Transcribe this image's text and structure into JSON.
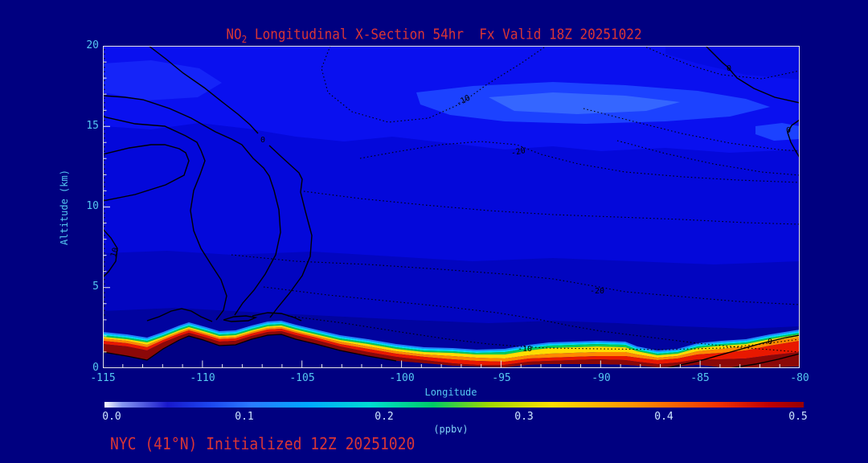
{
  "title": {
    "prefix": "NO",
    "sub": "2",
    "rest": " Longitudinal X-Section 54hr  Fx Valid 18Z 20251022"
  },
  "y_axis": {
    "label": "Altitude (km)",
    "ticks": [
      "20",
      "15",
      "10",
      "5",
      "0"
    ]
  },
  "x_axis": {
    "label": "Longitude",
    "ticks": [
      "-115",
      "-110",
      "-105",
      "-100",
      "-95",
      "-90",
      "-85",
      "-80"
    ]
  },
  "colorbar": {
    "units": "(ppbv)",
    "ticks": [
      "0.0",
      "0.1",
      "0.2",
      "0.3",
      "0.4",
      "0.5"
    ]
  },
  "footer": {
    "text": "NYC (41°N) Initialized 12Z 20251020"
  },
  "contour_labels": [
    "0",
    "10",
    "-10",
    "-20",
    "-20",
    "-10",
    "0",
    "0",
    "0"
  ],
  "colors": {
    "background": "#000080",
    "title_text": "#d93535",
    "axis_text": "#55c8f0",
    "colorbar_text": "#cfe8ff",
    "plume_dark_red": "#8b0808",
    "plume_yellow": "#ffdd00",
    "ambient_blue": "#0a10ef"
  },
  "chart_data": {
    "type": "heatmap",
    "title": "NO2 Longitudinal X-Section 54hr  Fx Valid 18Z 20251022",
    "subtitle": "NYC (41°N) Initialized 12Z 20251020",
    "xlabel": "Longitude",
    "ylabel": "Altitude (km)",
    "xlim": [
      -115,
      -80
    ],
    "ylim": [
      0,
      20
    ],
    "x_ticks": [
      -115,
      -110,
      -105,
      -100,
      -95,
      -90,
      -85,
      -80
    ],
    "y_ticks": [
      0,
      5,
      10,
      15,
      20
    ],
    "colorbar": {
      "label": "(ppbv)",
      "min": 0.0,
      "max": 0.5,
      "ticks": [
        0.0,
        0.1,
        0.2,
        0.3,
        0.4,
        0.5
      ],
      "gradient_stops": [
        "#ffffff",
        "#1818cc",
        "#2a7bff",
        "#00ddd2",
        "#00cc66",
        "#ffdf00",
        "#ff9000",
        "#f03000",
        "#960000"
      ]
    },
    "series": [
      {
        "name": "surface_plume_peak_NO2_ppbv",
        "x": [
          -115,
          -110,
          -105,
          -100,
          -95,
          -90,
          -85,
          -80
        ],
        "values": [
          0.5,
          0.45,
          0.45,
          0.4,
          0.5,
          0.5,
          0.5,
          0.5
        ]
      },
      {
        "name": "plume_top_altitude_km",
        "x": [
          -115,
          -110,
          -105,
          -100,
          -95,
          -90,
          -85,
          -80
        ],
        "values": [
          2.1,
          2.7,
          2.6,
          1.2,
          1.5,
          1.3,
          1.7,
          2.3
        ]
      },
      {
        "name": "ambient_NO2_above_3km_ppbv",
        "x": [
          -115,
          -110,
          -105,
          -100,
          -95,
          -90,
          -85,
          -80
        ],
        "values": [
          0.05,
          0.05,
          0.06,
          0.07,
          0.07,
          0.07,
          0.06,
          0.05
        ]
      }
    ],
    "overlay_contours": {
      "style": "solid lines west/positive, dotted lines east/negative",
      "labeled_values": [
        10,
        0,
        -10,
        -20,
        -20,
        -10,
        0,
        0,
        0
      ]
    },
    "legend_position": "bottom colorbar",
    "grid": false
  }
}
